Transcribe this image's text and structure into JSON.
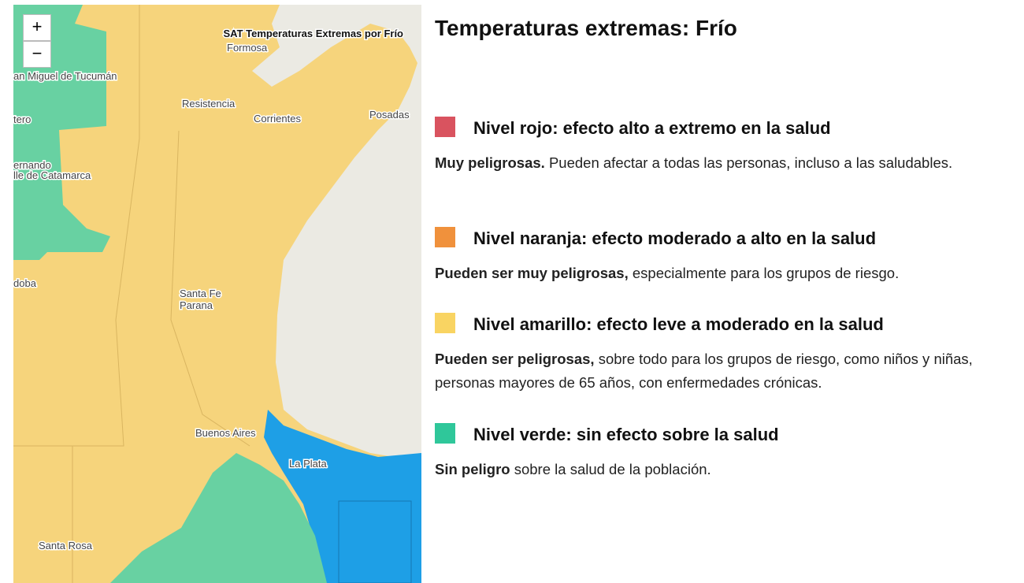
{
  "map": {
    "zoom_in": "+",
    "zoom_out": "−",
    "title": "SAT Temperaturas Extremas por Frío",
    "places": [
      "Formosa",
      "an Miguel de Tucumán",
      "Resistencia",
      "Corrientes",
      "Posadas",
      "tero",
      "ernando",
      "lle de Catamarca",
      "doba",
      "Santa Fe",
      "Parana",
      "Buenos Aires",
      "La Plata",
      "Santa Rosa"
    ]
  },
  "legend": {
    "title": "Temperaturas extremas: Frío",
    "levels": [
      {
        "color": "#d9535f",
        "heading": "Nivel rojo: efecto alto a extremo en la salud",
        "bold": "Muy peligrosas.",
        "text": "Pueden afectar a todas las personas, incluso a las saludables."
      },
      {
        "color": "#f0913c",
        "heading": "Nivel naranja: efecto moderado a alto en la salud",
        "bold": "Pueden ser muy peligrosas,",
        "text": "especialmente para los grupos de riesgo."
      },
      {
        "color": "#f9d462",
        "heading": "Nivel amarillo: efecto leve a moderado en la salud",
        "bold": "Pueden ser peligrosas,",
        "text": "sobre todo para los grupos de riesgo, como niños y niñas, personas mayores de 65 años, con enfermedades crónicas."
      },
      {
        "color": "#2fc79a",
        "heading": "Nivel verde: sin efecto sobre la salud",
        "bold": "Sin peligro",
        "text": "sobre la salud de la población."
      }
    ]
  }
}
